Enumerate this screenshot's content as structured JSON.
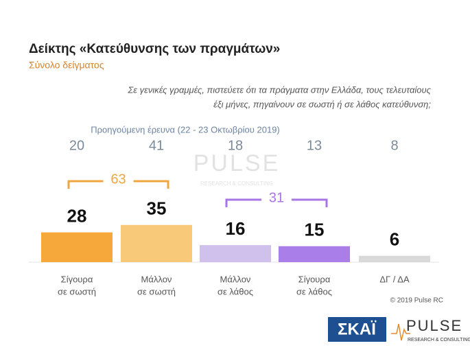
{
  "chart_data": {
    "type": "bar",
    "title": "Δείκτης «Κατεύθυνσης των πραγμάτων»",
    "subtitle": "Σύνολο δείγματος",
    "question": [
      "Σε γενικές γραμμές, πιστεύετε ότι τα πράγματα στην Ελλάδα, τους τελευταίους",
      "έξι μήνες, πηγαίνουν σε σωστή ή σε λάθος κατεύθυνση;"
    ],
    "categories": [
      [
        "Σίγουρα",
        "σε σωστή"
      ],
      [
        "Μάλλον",
        "σε σωστή"
      ],
      [
        "Μάλλον",
        "σε λάθος"
      ],
      [
        "Σίγουρα",
        "σε λάθος"
      ],
      [
        "ΔΓ / ΔΑ"
      ]
    ],
    "values": [
      28,
      35,
      16,
      15,
      6
    ],
    "colors": [
      "#f6a93a",
      "#f8c978",
      "#cfc0ec",
      "#a97ee8",
      "#d9d9d9"
    ],
    "previous": {
      "label": "Προηγούμενη έρευνα  (22 - 23  Οκτωβρίου  2019)",
      "values": [
        20,
        41,
        18,
        13,
        8
      ]
    },
    "groups": [
      {
        "value": 63,
        "color": "#f0a640"
      },
      {
        "value": 31,
        "color": "#a875e6"
      }
    ],
    "copyright": "© 2019 Pulse RC",
    "logos": {
      "skai": "ΣΚΑΪ",
      "pulse": "PULSE",
      "pulse_tagline": "RESEARCH & CONSULTING"
    }
  }
}
